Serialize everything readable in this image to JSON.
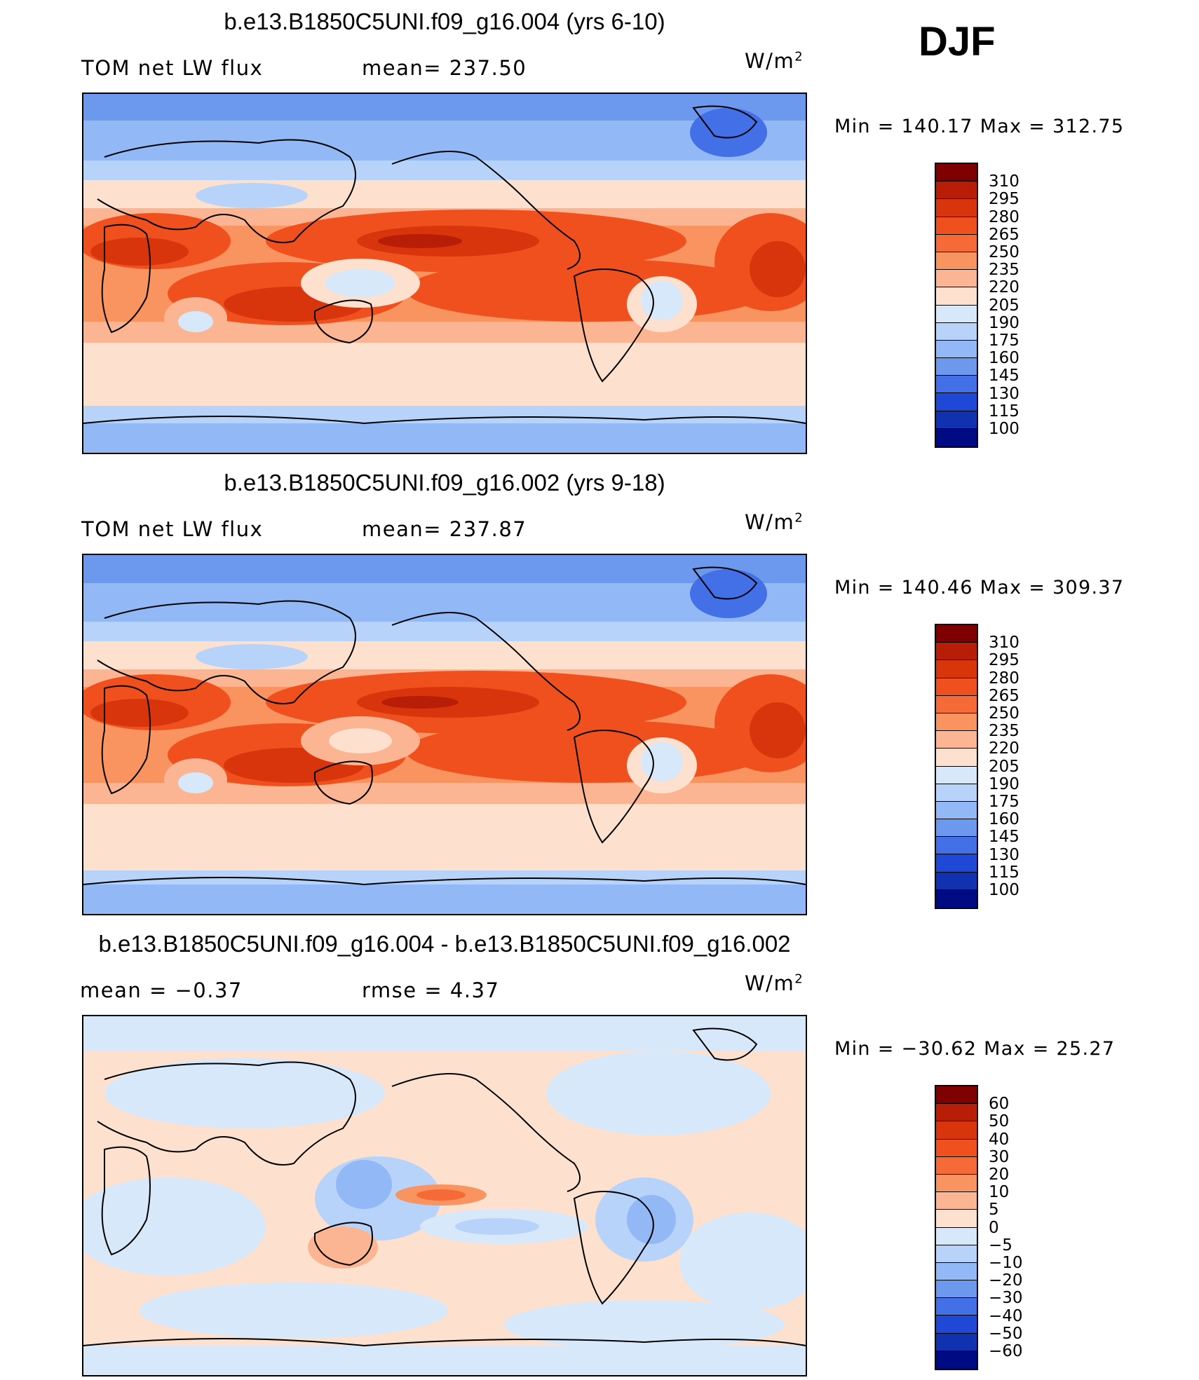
{
  "season": "DJF",
  "panels": [
    {
      "title": "b.e13.B1850C5UNI.f09_g16.004 (yrs 6-10)",
      "left_label": "TOM net LW flux",
      "center_label": "mean= 237.50",
      "unit_base": "W/m",
      "unit_exp": "2",
      "minmax": "Min  =  140.17  Max  =  312.75",
      "colorbar": {
        "labels": [
          "310",
          "295",
          "280",
          "265",
          "250",
          "235",
          "220",
          "205",
          "190",
          "175",
          "160",
          "145",
          "130",
          "115",
          "100"
        ],
        "colors": [
          "#7f0000",
          "#b81e07",
          "#d9350d",
          "#f0501e",
          "#f56a36",
          "#f9935f",
          "#fcb592",
          "#fde0cd",
          "#d8e8fb",
          "#b8d3fa",
          "#93b8f6",
          "#6c98ee",
          "#4370e6",
          "#2048d6",
          "#1032b0",
          "#000a82"
        ]
      }
    },
    {
      "title": "b.e13.B1850C5UNI.f09_g16.002 (yrs 9-18)",
      "left_label": "TOM net LW flux",
      "center_label": "mean= 237.87",
      "unit_base": "W/m",
      "unit_exp": "2",
      "minmax": "Min  =  140.46  Max  =  309.37",
      "colorbar": {
        "labels": [
          "310",
          "295",
          "280",
          "265",
          "250",
          "235",
          "220",
          "205",
          "190",
          "175",
          "160",
          "145",
          "130",
          "115",
          "100"
        ],
        "colors": [
          "#7f0000",
          "#b81e07",
          "#d9350d",
          "#f0501e",
          "#f56a36",
          "#f9935f",
          "#fcb592",
          "#fde0cd",
          "#d8e8fb",
          "#b8d3fa",
          "#93b8f6",
          "#6c98ee",
          "#4370e6",
          "#2048d6",
          "#1032b0",
          "#000a82"
        ]
      }
    },
    {
      "title": "b.e13.B1850C5UNI.f09_g16.004 - b.e13.B1850C5UNI.f09_g16.002",
      "left_label": "mean  =    −0.37",
      "center_label": "rmse  =     4.37",
      "unit_base": "W/m",
      "unit_exp": "2",
      "minmax": "Min  =  −30.62  Max  =    25.27",
      "colorbar": {
        "labels": [
          "60",
          "50",
          "40",
          "30",
          "20",
          "10",
          "5",
          "0",
          "−5",
          "−10",
          "−20",
          "−30",
          "−40",
          "−50",
          "−60"
        ],
        "colors": [
          "#7f0000",
          "#b81e07",
          "#d9350d",
          "#f0501e",
          "#f56a36",
          "#f9935f",
          "#fcb592",
          "#fde0cd",
          "#d8e8fb",
          "#b8d3fa",
          "#93b8f6",
          "#6c98ee",
          "#4370e6",
          "#2048d6",
          "#1032b0",
          "#000a82"
        ]
      }
    }
  ]
}
